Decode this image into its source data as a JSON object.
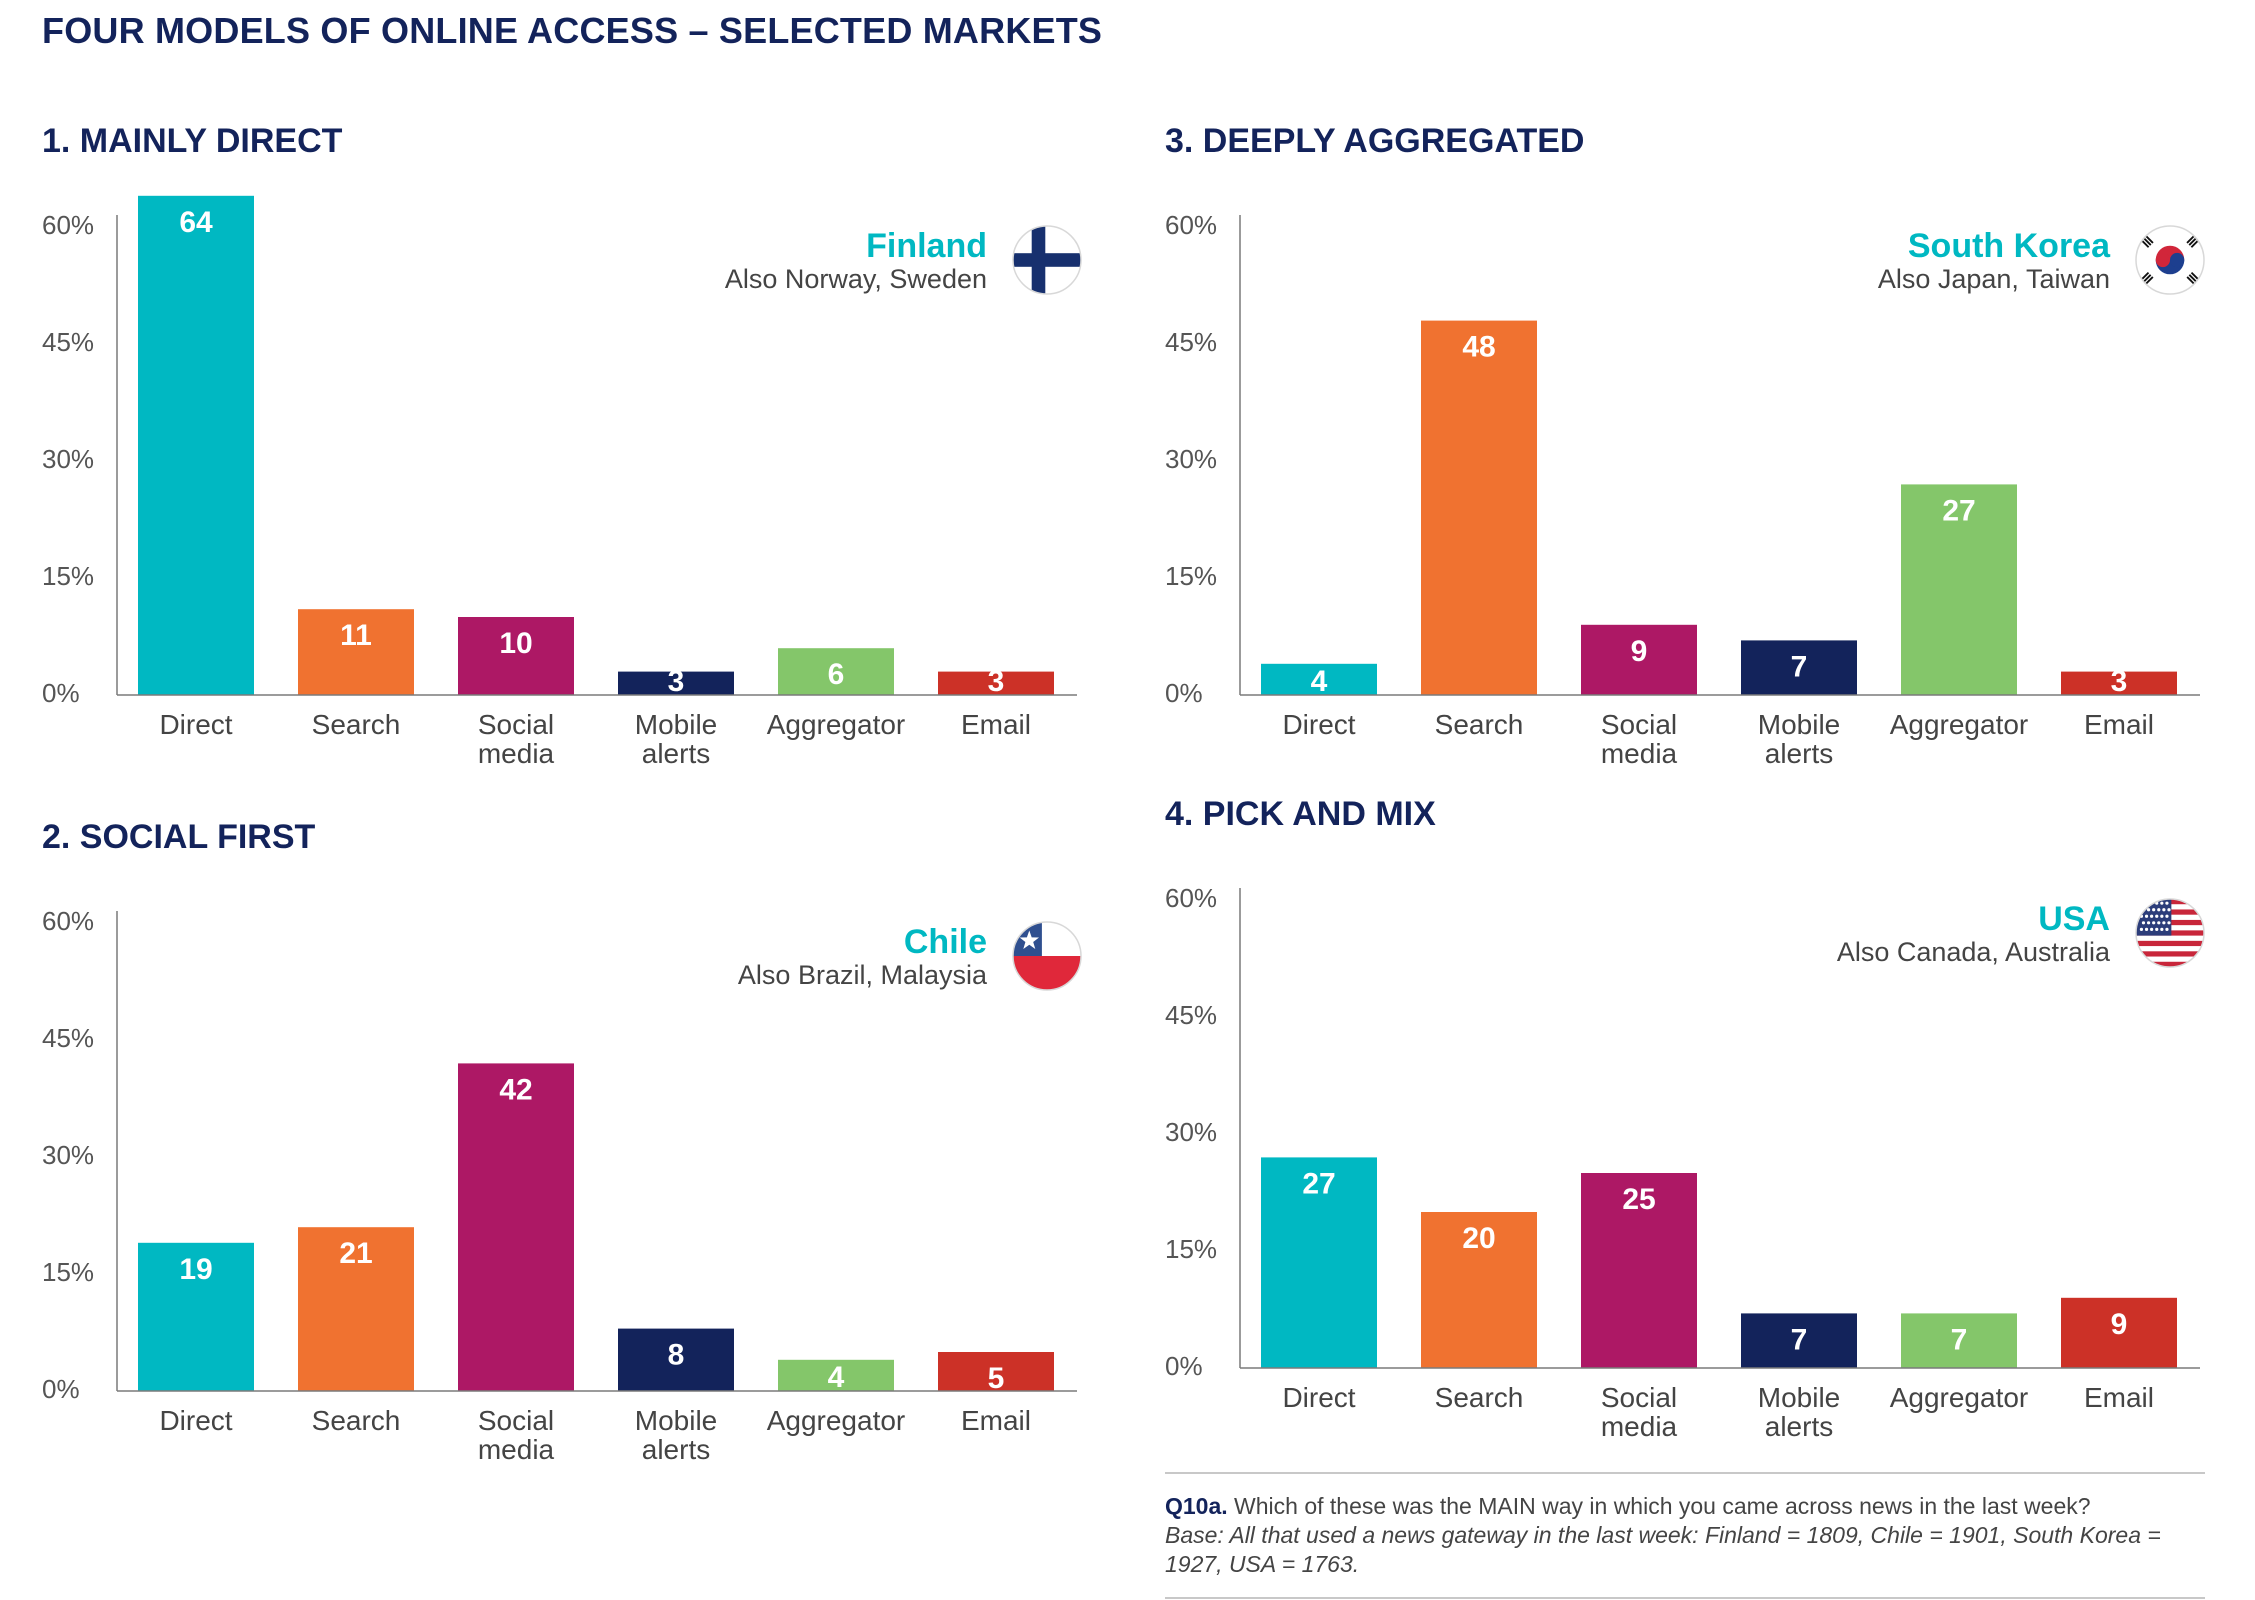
{
  "page_title": "FOUR MODELS OF ONLINE ACCESS – SELECTED MARKETS",
  "colors": {
    "Direct": "#00b8c2",
    "Search": "#f07230",
    "Social media": "#ad1865",
    "Mobile alerts": "#13235b",
    "Aggregator": "#84c66a",
    "Email": "#cc3127",
    "country": "#00b8c2",
    "axis": "#555555",
    "title": "#13235b"
  },
  "chart_data": [
    {
      "type": "bar",
      "title": "1. MAINLY DIRECT",
      "country": "Finland",
      "also": "Also Norway, Sweden",
      "flag": "finland-flag-icon",
      "categories": [
        "Direct",
        "Search",
        "Social media",
        "Mobile alerts",
        "Aggregator",
        "Email"
      ],
      "category_lines": [
        [
          "Direct"
        ],
        [
          "Search"
        ],
        [
          "Social",
          "media"
        ],
        [
          "Mobile",
          "alerts"
        ],
        [
          "Aggregator"
        ],
        [
          "Email"
        ]
      ],
      "values": [
        64,
        11,
        10,
        3,
        6,
        3
      ],
      "value_labels": [
        "64",
        "11",
        "10",
        "3",
        "6",
        "3"
      ],
      "yticks": [
        "0%",
        "15%",
        "30%",
        "45%",
        "60%"
      ],
      "ylim": [
        0,
        60
      ],
      "xlabel": "",
      "ylabel": ""
    },
    {
      "type": "bar",
      "title": "2. SOCIAL FIRST",
      "country": "Chile",
      "also": "Also Brazil, Malaysia",
      "flag": "chile-flag-icon",
      "categories": [
        "Direct",
        "Search",
        "Social media",
        "Mobile alerts",
        "Aggregator",
        "Email"
      ],
      "category_lines": [
        [
          "Direct"
        ],
        [
          "Search"
        ],
        [
          "Social",
          "media"
        ],
        [
          "Mobile",
          "alerts"
        ],
        [
          "Aggregator"
        ],
        [
          "Email"
        ]
      ],
      "values": [
        19,
        21,
        42,
        8,
        4,
        5
      ],
      "value_labels": [
        "19",
        "21",
        "42",
        "8",
        "4",
        "5"
      ],
      "yticks": [
        "0%",
        "15%",
        "30%",
        "45%",
        "60%"
      ],
      "ylim": [
        0,
        60
      ],
      "xlabel": "",
      "ylabel": ""
    },
    {
      "type": "bar",
      "title": "3. DEEPLY AGGREGATED",
      "country": "South Korea",
      "also": "Also Japan, Taiwan",
      "flag": "south-korea-flag-icon",
      "categories": [
        "Direct",
        "Search",
        "Social media",
        "Mobile alerts",
        "Aggregator",
        "Email"
      ],
      "category_lines": [
        [
          "Direct"
        ],
        [
          "Search"
        ],
        [
          "Social",
          "media"
        ],
        [
          "Mobile",
          "alerts"
        ],
        [
          "Aggregator"
        ],
        [
          "Email"
        ]
      ],
      "values": [
        4,
        48,
        9,
        7,
        27,
        3
      ],
      "value_labels": [
        "4",
        "48",
        "9",
        "7",
        "27",
        "3"
      ],
      "yticks": [
        "0%",
        "15%",
        "30%",
        "45%",
        "60%"
      ],
      "ylim": [
        0,
        60
      ],
      "xlabel": "",
      "ylabel": ""
    },
    {
      "type": "bar",
      "title": "4. PICK AND MIX",
      "country": "USA",
      "also": "Also Canada, Australia",
      "flag": "usa-flag-icon",
      "categories": [
        "Direct",
        "Search",
        "Social media",
        "Mobile alerts",
        "Aggregator",
        "Email"
      ],
      "category_lines": [
        [
          "Direct"
        ],
        [
          "Search"
        ],
        [
          "Social",
          "media"
        ],
        [
          "Mobile",
          "alerts"
        ],
        [
          "Aggregator"
        ],
        [
          "Email"
        ]
      ],
      "values": [
        27,
        20,
        25,
        7,
        7,
        9
      ],
      "value_labels": [
        "27",
        "20",
        "25",
        "7",
        "7",
        "9"
      ],
      "yticks": [
        "0%",
        "15%",
        "30%",
        "45%",
        "60%"
      ],
      "ylim": [
        0,
        60
      ],
      "xlabel": "",
      "ylabel": ""
    }
  ],
  "footnote": {
    "question_label": "Q10a.",
    "question": "Which of these was the MAIN way in which you came across news in the last week?",
    "base": "Base: All that used a news gateway in the last week: Finland = 1809, Chile = 1901, South Korea = 1927, USA = 1763."
  }
}
